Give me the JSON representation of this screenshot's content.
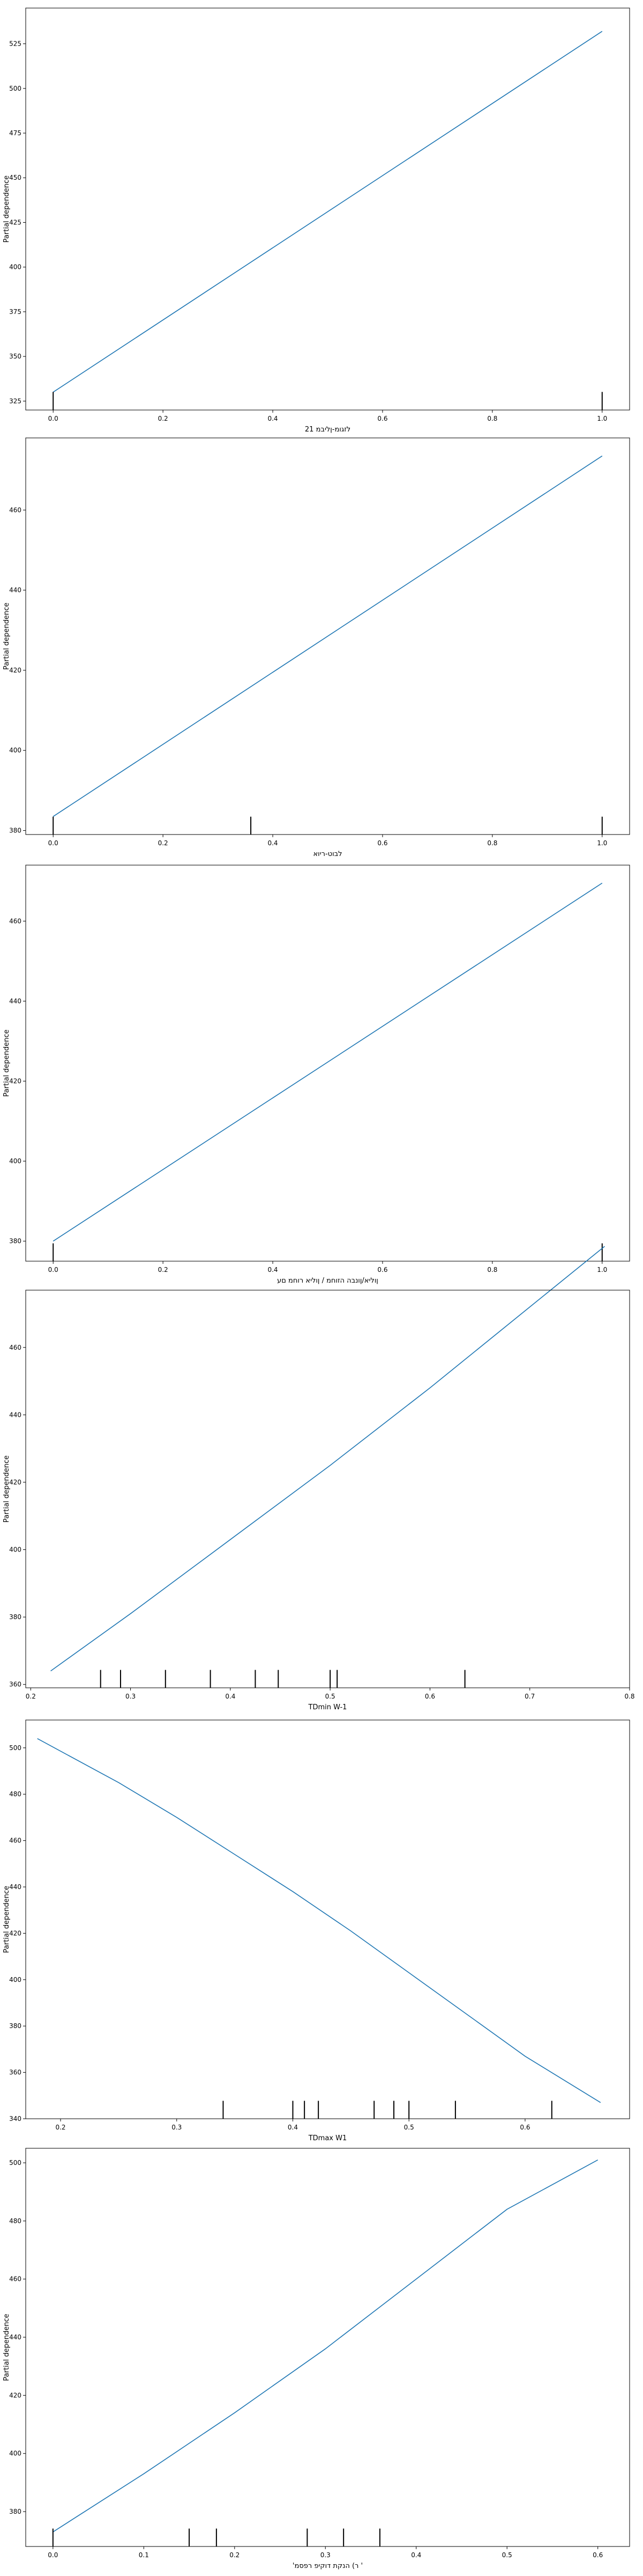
{
  "colors": {
    "line": "#1f77b4",
    "rug": "#000000"
  },
  "chart_data": [
    {
      "type": "line",
      "ylabel": "Partial dependence",
      "xlabel": "21 לזגומ-ןליבמ",
      "xlim": [
        -0.05,
        1.05
      ],
      "ylim": [
        320,
        545
      ],
      "xticks": [
        0.0,
        0.2,
        0.4,
        0.6,
        0.8,
        1.0
      ],
      "xtick_labels": [
        "0.0",
        "0.2",
        "0.4",
        "0.6",
        "0.8",
        "1.0"
      ],
      "yticks": [
        325,
        350,
        375,
        400,
        425,
        450,
        475,
        500,
        525
      ],
      "ytick_labels": [
        "325",
        "350",
        "375",
        "400",
        "425",
        "450",
        "475",
        "500",
        "525"
      ],
      "x": [
        0.0,
        1.0
      ],
      "y": [
        330,
        532
      ],
      "rug": [
        0.0,
        1.0
      ]
    },
    {
      "type": "line",
      "ylabel": "Partial dependence",
      "xlabel": "לבוט-ריוא",
      "xlim": [
        -0.05,
        1.05
      ],
      "ylim": [
        379,
        478
      ],
      "xticks": [
        0.0,
        0.2,
        0.4,
        0.6,
        0.8,
        1.0
      ],
      "xtick_labels": [
        "0.0",
        "0.2",
        "0.4",
        "0.6",
        "0.8",
        "1.0"
      ],
      "yticks": [
        380,
        400,
        420,
        440,
        460
      ],
      "ytick_labels": [
        "380",
        "400",
        "420",
        "440",
        "460"
      ],
      "x": [
        0.0,
        1.0
      ],
      "y": [
        383.5,
        473.5
      ],
      "rug": [
        0.0,
        0.36,
        1.0
      ]
    },
    {
      "type": "line",
      "ylabel": "Partial dependence",
      "xlabel": "ןוליא/ןונבה הזוחמ / ןוליא רוחמ םע",
      "xlim": [
        -0.05,
        1.05
      ],
      "ylim": [
        375,
        474
      ],
      "xticks": [
        0.0,
        0.2,
        0.4,
        0.6,
        0.8,
        1.0
      ],
      "xtick_labels": [
        "0.0",
        "0.2",
        "0.4",
        "0.6",
        "0.8",
        "1.0"
      ],
      "yticks": [
        380,
        400,
        420,
        440,
        460
      ],
      "ytick_labels": [
        "380",
        "400",
        "420",
        "440",
        "460"
      ],
      "x": [
        0.0,
        1.0
      ],
      "y": [
        380,
        469.5
      ],
      "rug": [
        0.0,
        1.0
      ]
    },
    {
      "type": "line",
      "ylabel": "Partial dependence",
      "xlabel": "TDmin W-1",
      "xlim": [
        0.195,
        0.8
      ],
      "ylim": [
        359,
        477
      ],
      "xticks": [
        0.2,
        0.3,
        0.4,
        0.5,
        0.6,
        0.7,
        0.8
      ],
      "xtick_labels": [
        "0.2",
        "0.3",
        "0.4",
        "0.5",
        "0.6",
        "0.7",
        "0.8"
      ],
      "yticks": [
        360,
        380,
        400,
        420,
        440,
        460
      ],
      "ytick_labels": [
        "360",
        "380",
        "400",
        "420",
        "440",
        "460"
      ],
      "x": [
        0.22,
        0.3,
        0.4,
        0.5,
        0.6,
        0.7,
        0.775
      ],
      "y": [
        364,
        381,
        403,
        425,
        448,
        472,
        490
      ],
      "rug": [
        0.27,
        0.29,
        0.335,
        0.38,
        0.425,
        0.448,
        0.5,
        0.507,
        0.635
      ]
    },
    {
      "type": "line",
      "ylabel": "Partial dependence",
      "xlabel": "TDmax W1",
      "xlim": [
        0.17,
        0.69
      ],
      "ylim": [
        340,
        512
      ],
      "xticks": [
        0.2,
        0.3,
        0.4,
        0.5,
        0.6
      ],
      "xtick_labels": [
        "0.2",
        "0.3",
        "0.4",
        "0.5",
        "0.6"
      ],
      "yticks": [
        340,
        360,
        380,
        400,
        420,
        440,
        460,
        480,
        500
      ],
      "ytick_labels": [
        "340",
        "360",
        "380",
        "400",
        "420",
        "440",
        "460",
        "480",
        "500"
      ],
      "x": [
        0.18,
        0.25,
        0.3,
        0.35,
        0.4,
        0.45,
        0.5,
        0.55,
        0.6,
        0.665
      ],
      "y": [
        504,
        485,
        470,
        454,
        438,
        421,
        403,
        385,
        367,
        347
      ],
      "rug": [
        0.34,
        0.4,
        0.41,
        0.422,
        0.47,
        0.487,
        0.5,
        0.54,
        0.623
      ]
    },
    {
      "type": "line",
      "ylabel": "Partial dependence",
      "xlabel": "'ר) הנקת דוקיפ רפסמ '",
      "xlim": [
        -0.03,
        0.635
      ],
      "ylim": [
        368,
        505
      ],
      "xticks": [
        0.0,
        0.1,
        0.2,
        0.3,
        0.4,
        0.5,
        0.6
      ],
      "xtick_labels": [
        "0.0",
        "0.1",
        "0.2",
        "0.3",
        "0.4",
        "0.5",
        "0.6"
      ],
      "yticks": [
        380,
        400,
        420,
        440,
        460,
        480,
        500
      ],
      "ytick_labels": [
        "380",
        "400",
        "420",
        "440",
        "460",
        "480",
        "500"
      ],
      "x": [
        0.0,
        0.1,
        0.2,
        0.3,
        0.4,
        0.5,
        0.6
      ],
      "y": [
        373,
        393,
        414,
        436,
        460,
        484,
        501
      ],
      "rug": [
        0.0,
        0.15,
        0.18,
        0.28,
        0.32,
        0.36
      ]
    }
  ]
}
